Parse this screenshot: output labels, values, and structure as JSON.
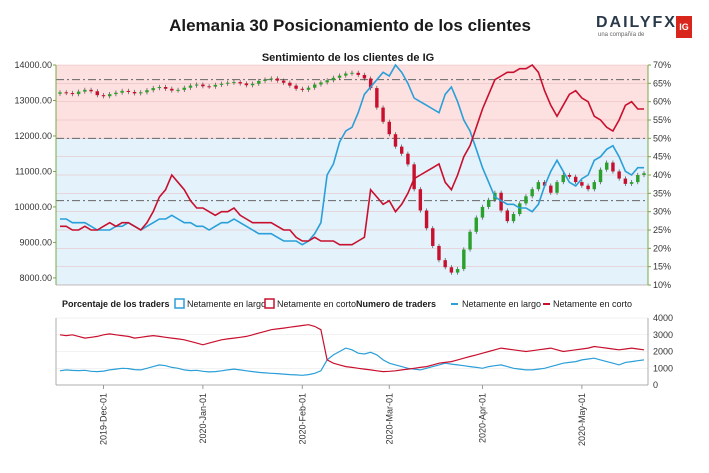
{
  "title": "Alemania 30 Posicionamiento de los clientes",
  "logo": {
    "brand_a": "DAILY",
    "brand_b": "FX",
    "sub": "una compañía de",
    "badge": "IG"
  },
  "colors": {
    "long": "#2a9fd8",
    "short": "#c8102e",
    "up": "#2ca02c",
    "down": "#c8102e",
    "bg_upper": "#fde0e0",
    "bg_lower": "#e3f2fb",
    "axis": "#7aa84a"
  },
  "chart_data": [
    {
      "type": "candlestick",
      "title": "Sentimiento de los clientes de IG",
      "left_axis": {
        "range": [
          7800,
          14000
        ],
        "ticks": [
          "14000.00",
          "13000.00",
          "12000.00",
          "11000.00",
          "10000.00",
          "9000.00",
          "8000.00"
        ],
        "tick_values": [
          14000,
          13000,
          12000,
          11000,
          10000,
          9000,
          8000
        ]
      },
      "right_axis": {
        "range": [
          10,
          70
        ],
        "ticks": [
          "70%",
          "65%",
          "60%",
          "55%",
          "50%",
          "45%",
          "40%",
          "35%",
          "30%",
          "25%",
          "20%",
          "15%",
          "10%"
        ],
        "tick_values": [
          70,
          65,
          60,
          55,
          50,
          45,
          40,
          35,
          30,
          25,
          20,
          15,
          10
        ]
      },
      "reference_levels_pct": [
        66,
        50,
        33
      ],
      "price_close": [
        13230,
        13210,
        13180,
        13250,
        13300,
        13260,
        13150,
        13120,
        13180,
        13220,
        13270,
        13240,
        13200,
        13230,
        13290,
        13350,
        13380,
        13330,
        13280,
        13300,
        13360,
        13420,
        13450,
        13400,
        13390,
        13440,
        13470,
        13500,
        13520,
        13480,
        13430,
        13470,
        13550,
        13590,
        13620,
        13560,
        13500,
        13420,
        13330,
        13300,
        13360,
        13450,
        13510,
        13570,
        13640,
        13700,
        13760,
        13780,
        13720,
        13620,
        13350,
        12800,
        12400,
        12050,
        11700,
        11500,
        11200,
        10500,
        9900,
        9400,
        8900,
        8500,
        8300,
        8150,
        8250,
        8800,
        9300,
        9700,
        10000,
        10200,
        10400,
        9900,
        9600,
        9800,
        10100,
        10300,
        10500,
        10700,
        10600,
        10400,
        10700,
        10900,
        10850,
        10700,
        10600,
        10500,
        10700,
        11050,
        11250,
        11000,
        10800,
        10650,
        10700,
        10900,
        10950
      ],
      "long_pct": [
        28,
        28,
        27,
        27,
        27,
        26,
        25,
        25,
        25,
        26,
        26,
        27,
        26,
        25,
        26,
        27,
        28,
        28,
        29,
        28,
        27,
        27,
        26,
        26,
        25,
        26,
        27,
        27,
        28,
        27,
        26,
        25,
        24,
        24,
        24,
        23,
        22,
        22,
        22,
        21,
        22,
        24,
        27,
        40,
        43,
        49,
        52,
        53,
        57,
        62,
        64,
        66,
        68,
        67,
        70,
        68,
        65,
        61,
        60,
        59,
        58,
        57,
        62,
        64,
        60,
        55,
        52,
        47,
        42,
        38,
        34,
        33,
        32,
        32,
        31,
        31,
        30,
        32,
        37,
        41,
        44,
        41,
        38,
        37,
        39,
        40,
        44,
        45,
        47,
        48,
        45,
        41,
        40,
        42,
        42
      ],
      "short_pct": [
        26,
        26,
        25,
        25,
        26,
        25,
        25,
        26,
        27,
        26,
        27,
        27,
        26,
        25,
        27,
        30,
        34,
        36,
        40,
        38,
        36,
        33,
        31,
        31,
        30,
        29,
        30,
        30,
        31,
        29,
        28,
        27,
        27,
        27,
        27,
        26,
        25,
        25,
        23,
        22,
        22,
        23,
        22,
        22,
        22,
        21,
        21,
        21,
        22,
        23,
        36,
        34,
        32,
        33,
        30,
        32,
        35,
        39,
        40,
        41,
        42,
        43,
        38,
        36,
        40,
        45,
        48,
        53,
        58,
        62,
        66,
        67,
        68,
        68,
        69,
        69,
        70,
        68,
        63,
        59,
        56,
        59,
        62,
        63,
        61,
        60,
        56,
        55,
        53,
        52,
        55,
        59,
        60,
        58,
        58
      ]
    },
    {
      "type": "line",
      "title": "Numero de traders",
      "legend": {
        "label_pct": "Porcentaje de los traders",
        "label_long": "Netamente en largo",
        "label_short": "Netamente en corto",
        "label_count": "Numero de traders",
        "label_count_long": "Netamente en largo",
        "label_count_short": "Netamente en corto"
      },
      "y_axis": {
        "range": [
          0,
          4000
        ],
        "ticks": [
          "4000",
          "3000",
          "2000",
          "1000",
          "0"
        ],
        "tick_values": [
          4000,
          3000,
          2000,
          1000,
          0
        ]
      },
      "x_ticks": [
        "2019-Dec-01",
        "2020-Jan-01",
        "2020-Feb-01",
        "2020-Mar-01",
        "2020-Apr-01",
        "2020-May-01"
      ],
      "x_tick_positions": [
        7,
        23,
        39,
        53,
        68,
        84
      ],
      "long_count": [
        850,
        900,
        870,
        860,
        880,
        820,
        800,
        830,
        900,
        950,
        1000,
        980,
        920,
        900,
        1000,
        1100,
        1200,
        1150,
        1050,
        1000,
        900,
        860,
        880,
        820,
        780,
        800,
        850,
        900,
        950,
        900,
        850,
        800,
        750,
        720,
        700,
        680,
        650,
        620,
        600,
        580,
        620,
        700,
        850,
        1500,
        1800,
        2000,
        2200,
        2100,
        1900,
        1850,
        1950,
        1800,
        1500,
        1300,
        1200,
        1100,
        1000,
        950,
        900,
        1000,
        1100,
        1200,
        1300,
        1250,
        1200,
        1150,
        1100,
        1050,
        1000,
        1100,
        1150,
        1200,
        1100,
        1000,
        950,
        900,
        900,
        950,
        1000,
        1100,
        1200,
        1300,
        1350,
        1400,
        1500,
        1550,
        1600,
        1500,
        1400,
        1300,
        1200,
        1350,
        1400,
        1450,
        1500
      ],
      "short_count": [
        3000,
        2950,
        3000,
        2900,
        2800,
        2850,
        2900,
        3000,
        3050,
        3000,
        2950,
        2900,
        2800,
        2850,
        2900,
        2950,
        2900,
        2850,
        2800,
        2750,
        2700,
        2600,
        2500,
        2400,
        2500,
        2600,
        2700,
        2750,
        2800,
        2850,
        2900,
        3000,
        3100,
        3200,
        3300,
        3350,
        3400,
        3450,
        3500,
        3550,
        3600,
        3500,
        3300,
        1500,
        1300,
        1200,
        1100,
        1050,
        1000,
        950,
        900,
        850,
        800,
        820,
        850,
        900,
        950,
        1000,
        1050,
        1100,
        1200,
        1300,
        1350,
        1400,
        1500,
        1600,
        1700,
        1800,
        1900,
        2000,
        2100,
        2200,
        2150,
        2100,
        2050,
        2000,
        2050,
        2100,
        2150,
        2200,
        2100,
        2000,
        2050,
        2100,
        2150,
        2200,
        2300,
        2250,
        2200,
        2150,
        2100,
        2150,
        2200,
        2150,
        2100
      ]
    }
  ]
}
